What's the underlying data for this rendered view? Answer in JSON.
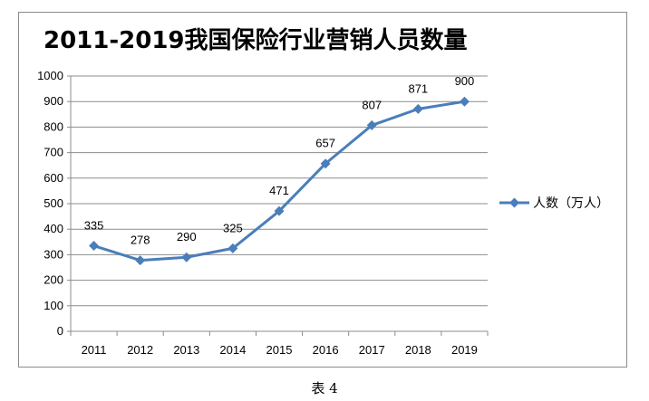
{
  "chart_data": {
    "type": "line",
    "title": "2011-2019我国保险行业营销人员数量",
    "categories": [
      "2011",
      "2012",
      "2013",
      "2014",
      "2015",
      "2016",
      "2017",
      "2018",
      "2019"
    ],
    "series": [
      {
        "name": "人数（万人）",
        "values": [
          335,
          278,
          290,
          325,
          471,
          657,
          807,
          871,
          900
        ]
      }
    ],
    "ylim": [
      0,
      1000
    ],
    "yticks": [
      0,
      100,
      200,
      300,
      400,
      500,
      600,
      700,
      800,
      900,
      1000
    ],
    "grid": true,
    "legend": "right",
    "color": "#4a7ebb"
  },
  "caption": "表 4"
}
